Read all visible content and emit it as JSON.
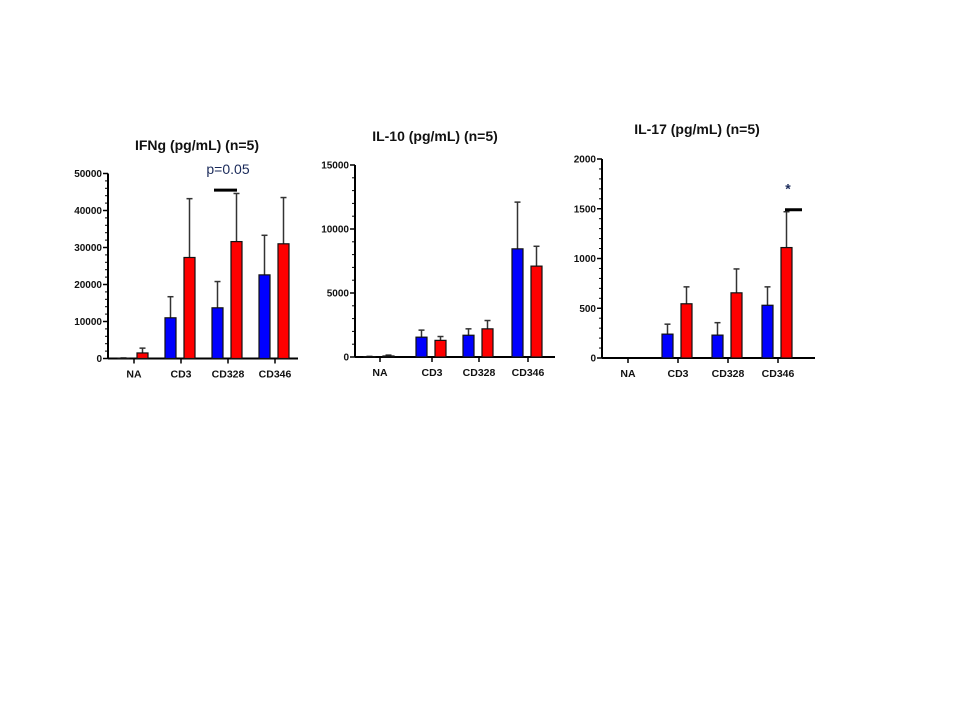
{
  "colors": {
    "series_a": "#0000ff",
    "series_b": "#ff0000",
    "axis": "#000000",
    "error_bar": "#333333"
  },
  "chart_data": [
    {
      "type": "bar",
      "title": "IFNg (pg/mL) (n=5)",
      "categories": [
        "NA",
        "CD3",
        "CD328",
        "CD346"
      ],
      "ylim": [
        0,
        50000
      ],
      "yticks": [
        "0",
        "10000",
        "20000",
        "30000",
        "40000",
        "50000"
      ],
      "series": [
        {
          "color": "#0000ff",
          "values": [
            100,
            11000,
            13700,
            22600
          ],
          "error_upper": [
            150,
            16700,
            20800,
            33300
          ]
        },
        {
          "color": "#ff0000",
          "values": [
            1500,
            27300,
            31600,
            31000
          ],
          "error_upper": [
            2800,
            43200,
            44600,
            43500
          ]
        }
      ],
      "annotations": [
        {
          "category": "CD328",
          "text": "p=0.05",
          "bar_value": 45500
        }
      ]
    },
    {
      "type": "bar",
      "title": "IL-10 (pg/mL) (n=5)",
      "categories": [
        "NA",
        "CD3",
        "CD328",
        "CD346"
      ],
      "ylim": [
        0,
        15000
      ],
      "yticks": [
        "0",
        "5000",
        "10000",
        "15000"
      ],
      "series": [
        {
          "color": "#0000ff",
          "values": [
            30,
            1550,
            1700,
            8450
          ],
          "error_upper": [
            50,
            2100,
            2200,
            12100
          ]
        },
        {
          "color": "#ff0000",
          "values": [
            80,
            1300,
            2200,
            7100
          ],
          "error_upper": [
            150,
            1600,
            2850,
            8650
          ]
        }
      ],
      "annotations": []
    },
    {
      "type": "bar",
      "title": "IL-17 (pg/mL) (n=5)",
      "categories": [
        "NA",
        "CD3",
        "CD328",
        "CD346"
      ],
      "ylim": [
        0,
        2000
      ],
      "yticks": [
        "0",
        "500",
        "1000",
        "1500",
        "2000"
      ],
      "series": [
        {
          "color": "#0000ff",
          "values": [
            0,
            240,
            230,
            530
          ],
          "error_upper": [
            0,
            340,
            355,
            715
          ]
        },
        {
          "color": "#ff0000",
          "values": [
            0,
            545,
            655,
            1110
          ],
          "error_upper": [
            0,
            715,
            895,
            1470
          ]
        }
      ],
      "annotations": [
        {
          "category": "CD346",
          "text": "*",
          "bar_value": 1490
        }
      ]
    }
  ]
}
